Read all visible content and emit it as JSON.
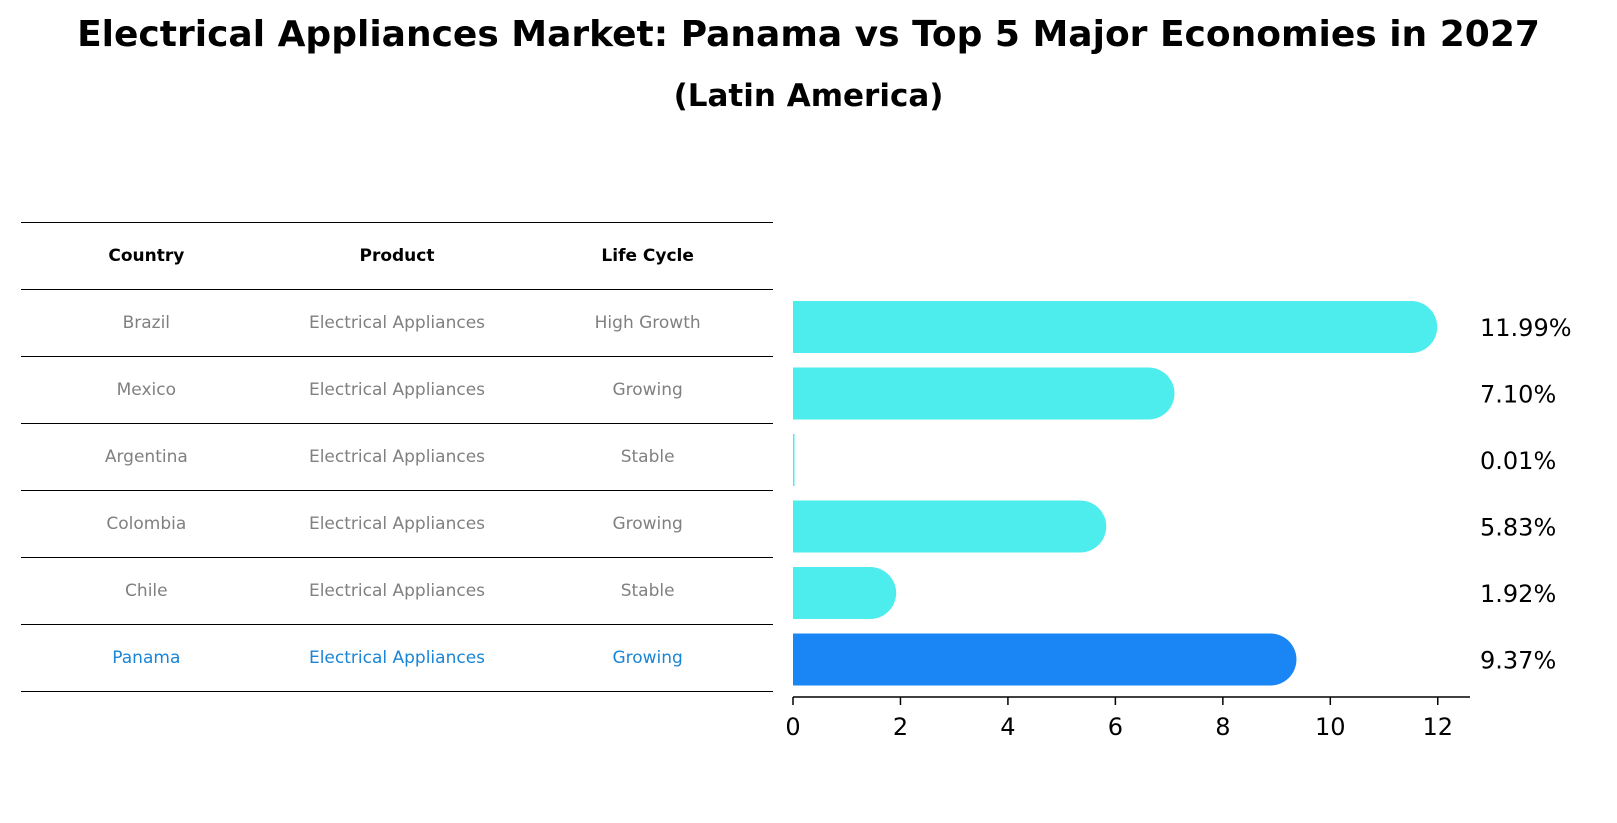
{
  "title": "Electrical Appliances Market: Panama vs Top 5 Major Economies in 2027",
  "subtitle": "(Latin America)",
  "table": {
    "headers": [
      "Country",
      "Product",
      "Life Cycle"
    ],
    "rows": [
      {
        "country": "Brazil",
        "product": "Electrical Appliances",
        "life_cycle": "High Growth"
      },
      {
        "country": "Mexico",
        "product": "Electrical Appliances",
        "life_cycle": "Growing"
      },
      {
        "country": "Argentina",
        "product": "Electrical Appliances",
        "life_cycle": "Stable"
      },
      {
        "country": "Colombia",
        "product": "Electrical Appliances",
        "life_cycle": "Growing"
      },
      {
        "country": "Chile",
        "product": "Electrical Appliances",
        "life_cycle": "Stable"
      },
      {
        "country": "Panama",
        "product": "Electrical Appliances",
        "life_cycle": "Growing"
      }
    ]
  },
  "chart_data": {
    "type": "bar",
    "orientation": "horizontal",
    "categories": [
      "Brazil",
      "Mexico",
      "Argentina",
      "Colombia",
      "Chile",
      "Panama"
    ],
    "values": [
      11.99,
      7.1,
      0.01,
      5.83,
      1.92,
      9.37
    ],
    "value_labels": [
      "11.99%",
      "7.10%",
      "0.01%",
      "5.83%",
      "1.92%",
      "9.37%"
    ],
    "highlight": "Panama",
    "xlim": [
      0,
      12.6
    ],
    "xticks": [
      0,
      2,
      4,
      6,
      8,
      10,
      12
    ],
    "colors": {
      "default": "#4deded",
      "highlight": "#1a85f5"
    }
  }
}
